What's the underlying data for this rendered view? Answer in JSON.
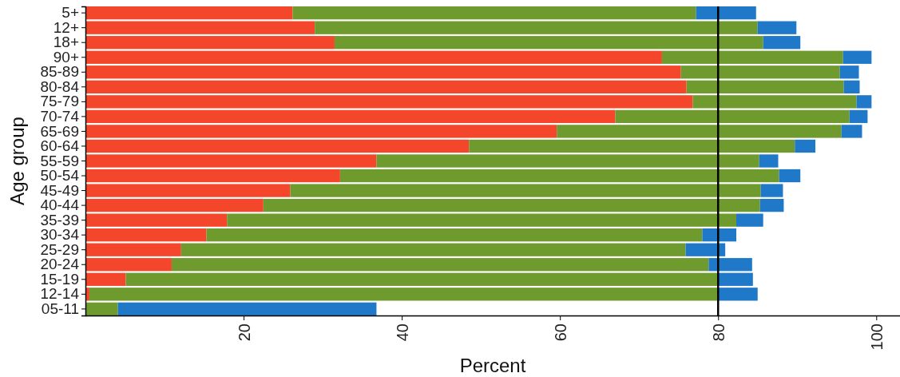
{
  "chart_data": {
    "type": "bar",
    "orientation": "horizontal",
    "stacked": true,
    "xlabel": "Percent",
    "ylabel": "Age group",
    "categories": [
      "5+",
      "12+",
      "18+",
      "90+",
      "85-89",
      "80-84",
      "75-79",
      "70-74",
      "65-69",
      "60-64",
      "55-59",
      "50-54",
      "45-49",
      "40-44",
      "35-39",
      "30-34",
      "25-29",
      "20-24",
      "15-19",
      "12-14",
      "05-11"
    ],
    "series": [
      {
        "color": "#f4462a",
        "values": [
          26.2,
          29.0,
          31.5,
          72.9,
          75.3,
          76.0,
          76.8,
          67.0,
          59.6,
          48.5,
          36.8,
          32.2,
          25.9,
          22.5,
          17.9,
          15.3,
          12.1,
          10.9,
          5.1,
          0.5,
          0
        ]
      },
      {
        "color": "#6e9a2e",
        "values": [
          51.0,
          56.0,
          54.2,
          22.9,
          20.1,
          19.9,
          20.7,
          29.6,
          36.0,
          41.2,
          48.4,
          55.5,
          59.5,
          62.8,
          64.4,
          62.7,
          63.8,
          67.9,
          74.8,
          79.4,
          4.1
        ]
      },
      {
        "color": "#1f78c8",
        "values": [
          7.6,
          4.9,
          4.7,
          3.6,
          2.4,
          2.0,
          1.9,
          2.3,
          2.6,
          2.6,
          2.4,
          2.7,
          2.8,
          3.0,
          3.4,
          4.3,
          5.0,
          5.5,
          4.5,
          5.1,
          32.7
        ]
      }
    ],
    "xlim": [
      0,
      103
    ],
    "xticks": [
      20,
      40,
      60,
      80,
      100
    ],
    "ref_lines": [
      {
        "axis": "x",
        "value": 80,
        "color": "#000000"
      }
    ]
  }
}
